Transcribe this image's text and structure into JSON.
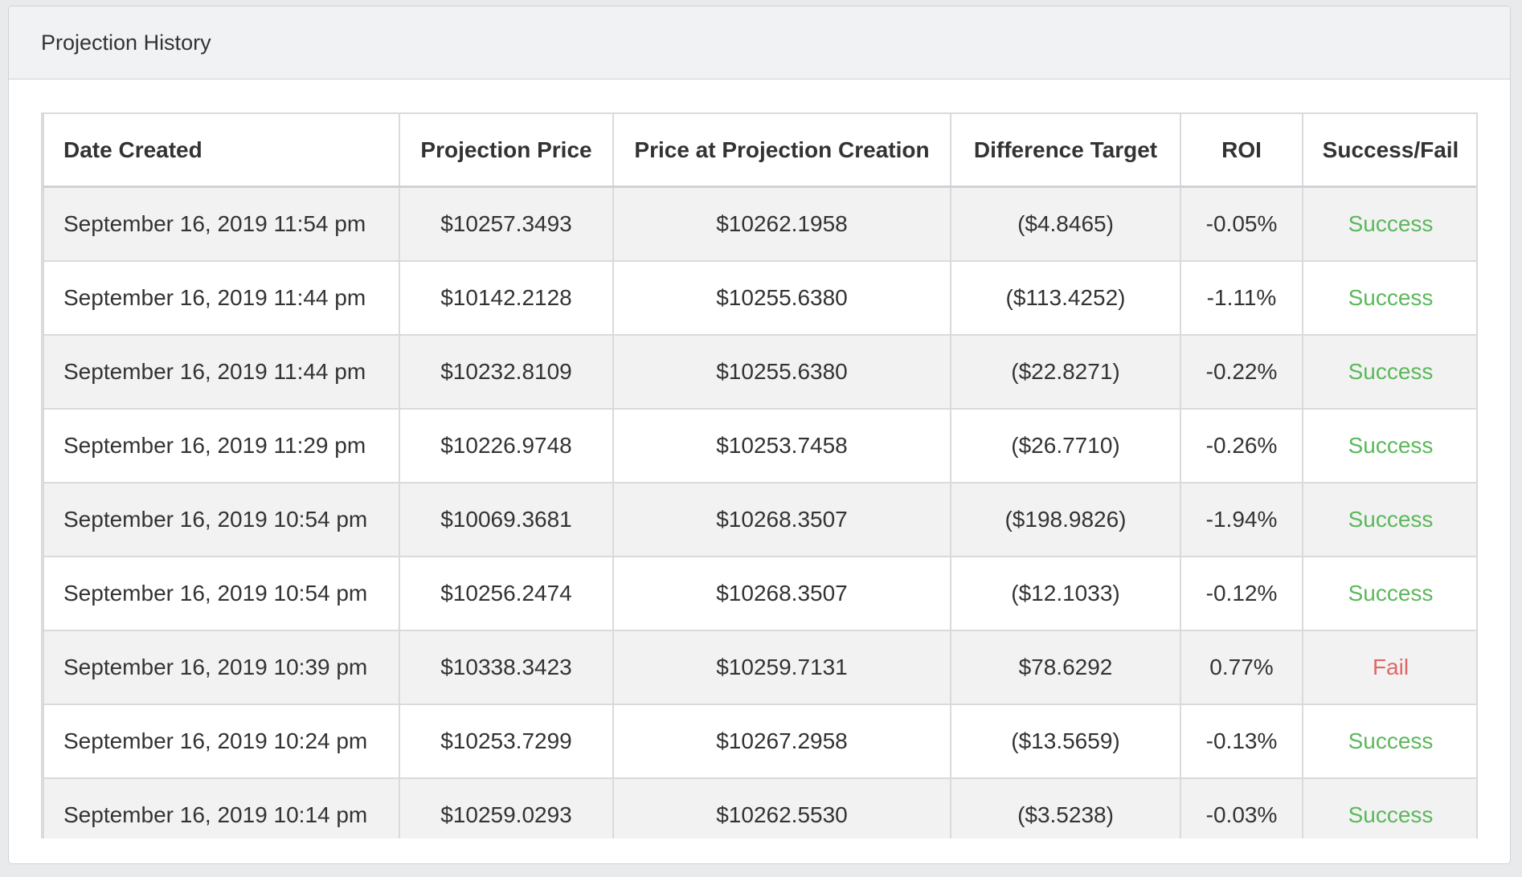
{
  "panel": {
    "title": "Projection History"
  },
  "table": {
    "headers": [
      "Date Created",
      "Projection Price",
      "Price at Projection Creation",
      "Difference Target",
      "ROI",
      "Success/Fail"
    ],
    "rows": [
      {
        "date": "September 16, 2019 11:54 pm",
        "projection_price": "$10257.3493",
        "price_at_creation": "$10262.1958",
        "difference_target": "($4.8465)",
        "roi": "-0.05%",
        "result": "Success"
      },
      {
        "date": "September 16, 2019 11:44 pm",
        "projection_price": "$10142.2128",
        "price_at_creation": "$10255.6380",
        "difference_target": "($113.4252)",
        "roi": "-1.11%",
        "result": "Success"
      },
      {
        "date": "September 16, 2019 11:44 pm",
        "projection_price": "$10232.8109",
        "price_at_creation": "$10255.6380",
        "difference_target": "($22.8271)",
        "roi": "-0.22%",
        "result": "Success"
      },
      {
        "date": "September 16, 2019 11:29 pm",
        "projection_price": "$10226.9748",
        "price_at_creation": "$10253.7458",
        "difference_target": "($26.7710)",
        "roi": "-0.26%",
        "result": "Success"
      },
      {
        "date": "September 16, 2019 10:54 pm",
        "projection_price": "$10069.3681",
        "price_at_creation": "$10268.3507",
        "difference_target": "($198.9826)",
        "roi": "-1.94%",
        "result": "Success"
      },
      {
        "date": "September 16, 2019 10:54 pm",
        "projection_price": "$10256.2474",
        "price_at_creation": "$10268.3507",
        "difference_target": "($12.1033)",
        "roi": "-0.12%",
        "result": "Success"
      },
      {
        "date": "September 16, 2019 10:39 pm",
        "projection_price": "$10338.3423",
        "price_at_creation": "$10259.7131",
        "difference_target": "$78.6292",
        "roi": "0.77%",
        "result": "Fail"
      },
      {
        "date": "September 16, 2019 10:24 pm",
        "projection_price": "$10253.7299",
        "price_at_creation": "$10267.2958",
        "difference_target": "($13.5659)",
        "roi": "-0.13%",
        "result": "Success"
      },
      {
        "date": "September 16, 2019 10:14 pm",
        "projection_price": "$10259.0293",
        "price_at_creation": "$10262.5530",
        "difference_target": "($3.5238)",
        "roi": "-0.03%",
        "result": "Success"
      }
    ]
  },
  "colors": {
    "success": "#5cb85c",
    "fail": "#e06666",
    "header_bg": "#f1f2f3",
    "stripe_bg": "#f2f2f2"
  }
}
